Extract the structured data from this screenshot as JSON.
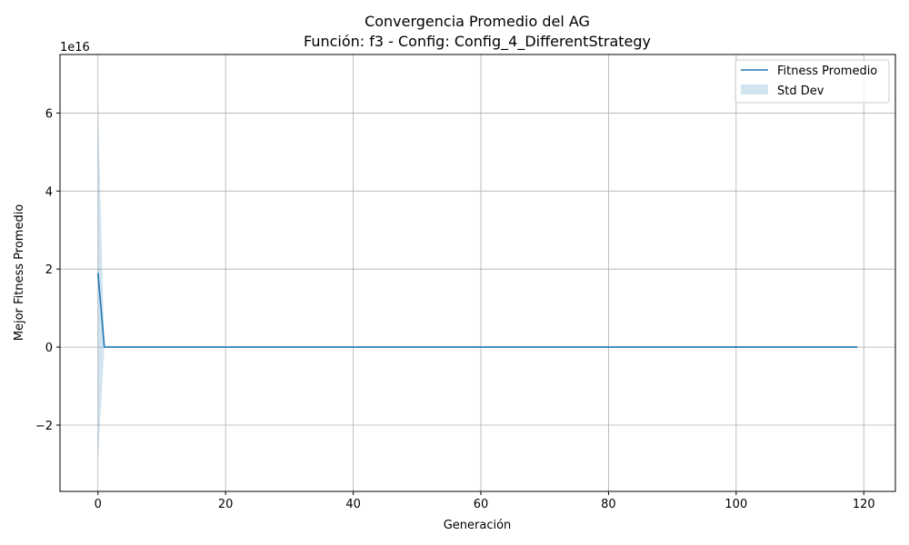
{
  "chart_data": {
    "type": "line",
    "title": "Convergencia Promedio del AG",
    "subtitle": "Función: f3 - Config: Config_4_DifferentStrategy",
    "xlabel": "Generación",
    "ylabel": "Mejor Fitness Promedio",
    "y_offset_label": "1e16",
    "xlim": [
      -5.95,
      124.95
    ],
    "ylim": [
      -3.7,
      7.5
    ],
    "xticks": [
      0,
      20,
      40,
      60,
      80,
      100,
      120
    ],
    "xtick_labels": [
      "0",
      "20",
      "40",
      "60",
      "80",
      "100",
      "120"
    ],
    "yticks": [
      -2,
      0,
      2,
      4,
      6
    ],
    "ytick_labels": [
      "−2",
      "0",
      "2",
      "4",
      "6"
    ],
    "grid": true,
    "legend_position": "top-right",
    "series": [
      {
        "name": "Fitness Promedio",
        "kind": "line",
        "color": "#1f77b4",
        "x": [
          0,
          1,
          119
        ],
        "y": [
          1.9,
          0.0,
          0.0
        ]
      },
      {
        "name": "Std Dev",
        "kind": "band",
        "color": "#1f77b4",
        "alpha": 0.2,
        "x": [
          0,
          1,
          119
        ],
        "upper": [
          6.3,
          0.0,
          0.0
        ],
        "lower": [
          -2.9,
          0.0,
          0.0
        ]
      }
    ]
  }
}
